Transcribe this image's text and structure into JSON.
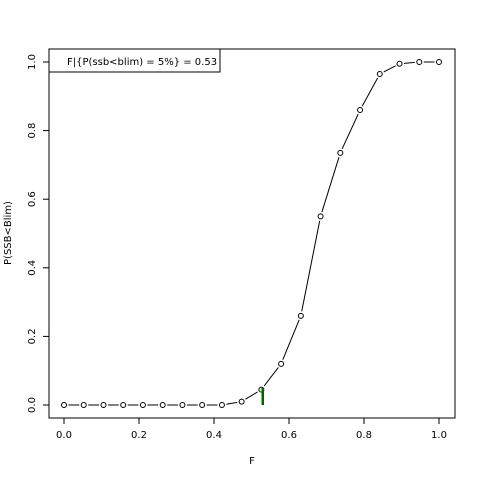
{
  "chart_data": {
    "type": "line",
    "title": "",
    "xlabel": "F",
    "ylabel": "P(SSB<Blim)",
    "xlim": [
      0,
      1
    ],
    "ylim": [
      0,
      1
    ],
    "x_ticks": [
      "0.0",
      "0.2",
      "0.4",
      "0.6",
      "0.8",
      "1.0"
    ],
    "y_ticks": [
      "0.0",
      "0.2",
      "0.4",
      "0.6",
      "0.8",
      "1.0"
    ],
    "grid": false,
    "series": [
      {
        "x": [
          0.0,
          0.0526,
          0.1053,
          0.1579,
          0.2105,
          0.2632,
          0.3158,
          0.3684,
          0.4211,
          0.4737,
          0.5263,
          0.5789,
          0.6316,
          0.6842,
          0.7368,
          0.7895,
          0.8421,
          0.8947,
          0.9474,
          1.0
        ],
        "y": [
          0.0,
          0.0,
          0.0,
          0.0,
          0.0,
          0.0,
          0.0,
          0.0,
          0.0,
          0.01,
          0.045,
          0.12,
          0.26,
          0.55,
          0.735,
          0.86,
          0.965,
          0.995,
          1.0,
          1.0
        ],
        "marker": "open-circle",
        "color": "#000000"
      }
    ],
    "reference": {
      "x": 0.53,
      "y0": 0.0,
      "y1": 0.05,
      "color": "#006400"
    },
    "legend": {
      "position": "top-left",
      "text": "F|{P(ssb<blim) = 5%} =  0.53"
    }
  }
}
